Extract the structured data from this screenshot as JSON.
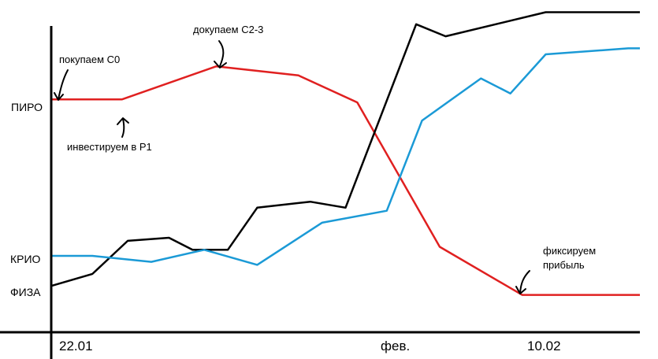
{
  "chart_data": {
    "type": "line",
    "title": "",
    "xlabel": "",
    "ylabel": "",
    "x_tick_labels": [
      "22.01",
      "фев.",
      "10.02"
    ],
    "y_tick_labels": [
      "ПИРО",
      "КРИО",
      "ФИЗА"
    ],
    "grid": false,
    "legend": "none",
    "x_range": [
      0,
      100
    ],
    "y_range": [
      0,
      100
    ],
    "series": [
      {
        "color": "#e02020",
        "x": [
          0,
          12,
          28,
          42,
          52,
          66,
          80,
          100
        ],
        "y": [
          74,
          74,
          85,
          82,
          73,
          25,
          9,
          9
        ]
      },
      {
        "color": "#000000",
        "x": [
          0,
          7,
          13,
          20,
          24,
          30,
          35,
          44,
          50,
          62,
          67,
          84,
          100
        ],
        "y": [
          12,
          16,
          27,
          28,
          24,
          24,
          38,
          40,
          38,
          99,
          95,
          103,
          103
        ]
      },
      {
        "color": "#1b9ad6",
        "x": [
          0,
          7,
          17,
          26,
          35,
          46,
          57,
          63,
          73,
          78,
          84,
          98,
          100
        ],
        "y": [
          22,
          22,
          20,
          24,
          19,
          33,
          37,
          67,
          81,
          76,
          89,
          91,
          91
        ]
      }
    ],
    "annotations": [
      {
        "text": "покупаем С0"
      },
      {
        "text": "инвестируем в Р1"
      },
      {
        "text": "докупаем С2-3"
      },
      {
        "text": "фиксируем"
      },
      {
        "text": "прибыль"
      }
    ]
  }
}
